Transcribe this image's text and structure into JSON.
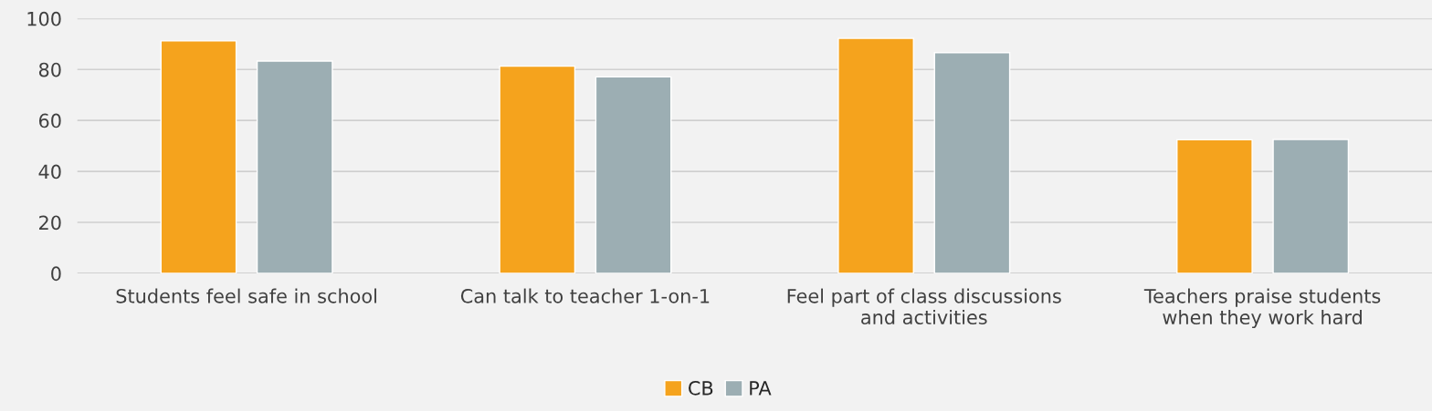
{
  "chart_data": {
    "type": "bar",
    "categories": [
      "Students feel safe in school",
      "Can talk to teacher 1-on-1",
      "Feel part of class discussions\nand activities",
      "Teachers praise students\nwhen they work hard"
    ],
    "series": [
      {
        "name": "CB",
        "color": "#f5a31d",
        "values": [
          91.2,
          81.3,
          92.2,
          52.4
        ]
      },
      {
        "name": "PA",
        "color": "#9caeb3",
        "values": [
          83.3,
          77.1,
          86.6,
          52.5
        ]
      }
    ],
    "ylim": [
      0,
      100
    ],
    "yticks": [
      0,
      20,
      40,
      60,
      80,
      100
    ],
    "grid": "y",
    "legend": "bottom"
  }
}
